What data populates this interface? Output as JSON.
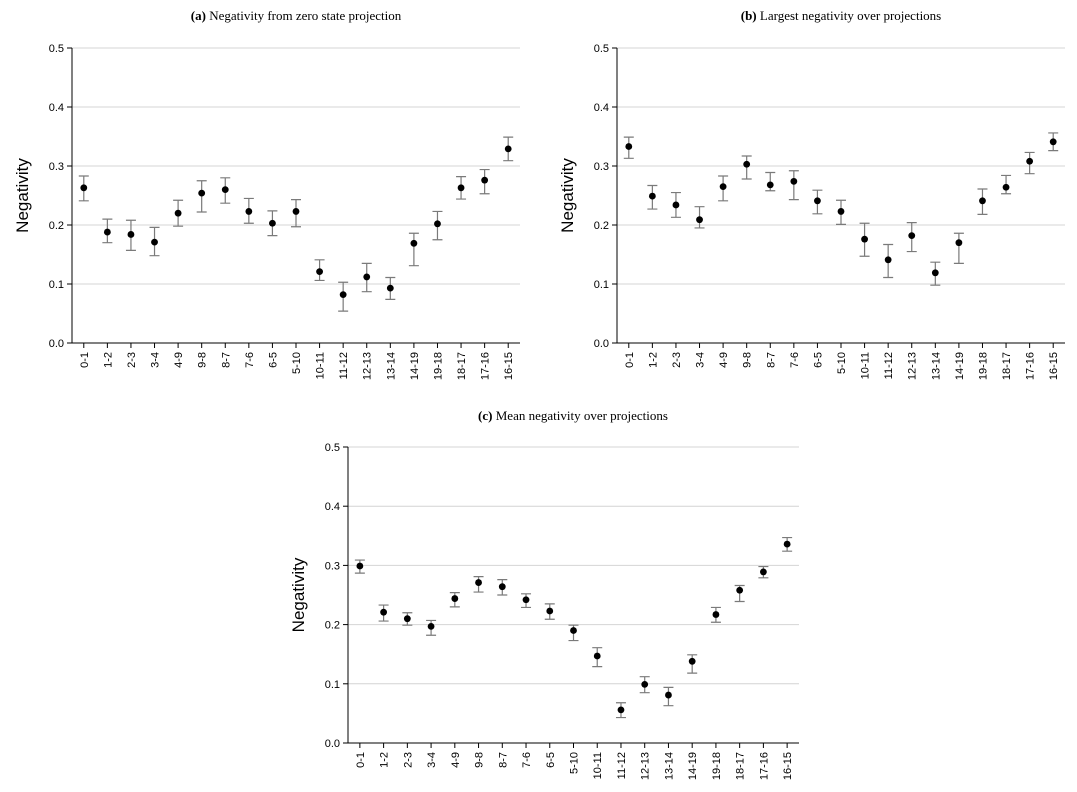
{
  "chart_data": [
    {
      "type": "scatter",
      "panel_label": "(a)",
      "title": "Negativity from zero state projection",
      "xlabel": "",
      "ylabel": "Negativity",
      "ylim": [
        0,
        0.5
      ],
      "yticks": [
        "0.0",
        "0.1",
        "0.2",
        "0.3",
        "0.4",
        "0.5"
      ],
      "grid": true,
      "categories": [
        "0-1",
        "1-2",
        "2-3",
        "3-4",
        "4-9",
        "9-8",
        "8-7",
        "7-6",
        "6-5",
        "5-10",
        "10-11",
        "11-12",
        "12-13",
        "13-14",
        "14-19",
        "19-18",
        "18-17",
        "17-16",
        "16-15"
      ],
      "values": [
        0.263,
        0.188,
        0.184,
        0.171,
        0.22,
        0.254,
        0.26,
        0.223,
        0.203,
        0.223,
        0.121,
        0.082,
        0.112,
        0.093,
        0.169,
        0.202,
        0.263,
        0.276,
        0.329
      ],
      "err_low": [
        0.241,
        0.17,
        0.157,
        0.148,
        0.198,
        0.222,
        0.237,
        0.203,
        0.182,
        0.197,
        0.106,
        0.054,
        0.087,
        0.074,
        0.131,
        0.175,
        0.244,
        0.253,
        0.309
      ],
      "err_high": [
        0.283,
        0.21,
        0.208,
        0.196,
        0.242,
        0.275,
        0.28,
        0.245,
        0.224,
        0.243,
        0.141,
        0.103,
        0.135,
        0.111,
        0.186,
        0.223,
        0.282,
        0.294,
        0.349
      ]
    },
    {
      "type": "scatter",
      "panel_label": "(b)",
      "title": "Largest negativity over projections",
      "xlabel": "",
      "ylabel": "Negativity",
      "ylim": [
        0,
        0.5
      ],
      "yticks": [
        "0.0",
        "0.1",
        "0.2",
        "0.3",
        "0.4",
        "0.5"
      ],
      "grid": true,
      "categories": [
        "0-1",
        "1-2",
        "2-3",
        "3-4",
        "4-9",
        "9-8",
        "8-7",
        "7-6",
        "6-5",
        "5-10",
        "10-11",
        "11-12",
        "12-13",
        "13-14",
        "14-19",
        "19-18",
        "18-17",
        "17-16",
        "16-15"
      ],
      "values": [
        0.333,
        0.249,
        0.234,
        0.209,
        0.265,
        0.303,
        0.268,
        0.274,
        0.241,
        0.223,
        0.176,
        0.141,
        0.182,
        0.119,
        0.17,
        0.241,
        0.264,
        0.308,
        0.341
      ],
      "err_low": [
        0.313,
        0.227,
        0.213,
        0.195,
        0.241,
        0.278,
        0.258,
        0.243,
        0.219,
        0.201,
        0.147,
        0.111,
        0.155,
        0.098,
        0.135,
        0.218,
        0.253,
        0.287,
        0.326
      ],
      "err_high": [
        0.349,
        0.267,
        0.255,
        0.231,
        0.283,
        0.317,
        0.289,
        0.292,
        0.259,
        0.242,
        0.203,
        0.167,
        0.204,
        0.137,
        0.186,
        0.261,
        0.284,
        0.323,
        0.356
      ]
    },
    {
      "type": "scatter",
      "panel_label": "(c)",
      "title": "Mean negativity over projections",
      "xlabel": "",
      "ylabel": "Negativity",
      "ylim": [
        0,
        0.5
      ],
      "yticks": [
        "0.0",
        "0.1",
        "0.2",
        "0.3",
        "0.4",
        "0.5"
      ],
      "grid": true,
      "categories": [
        "0-1",
        "1-2",
        "2-3",
        "3-4",
        "4-9",
        "9-8",
        "8-7",
        "7-6",
        "6-5",
        "5-10",
        "10-11",
        "11-12",
        "12-13",
        "13-14",
        "14-19",
        "19-18",
        "18-17",
        "17-16",
        "16-15"
      ],
      "values": [
        0.299,
        0.221,
        0.21,
        0.197,
        0.244,
        0.271,
        0.264,
        0.242,
        0.223,
        0.19,
        0.147,
        0.056,
        0.099,
        0.081,
        0.138,
        0.217,
        0.258,
        0.289,
        0.336
      ],
      "err_low": [
        0.287,
        0.206,
        0.199,
        0.182,
        0.23,
        0.255,
        0.25,
        0.229,
        0.209,
        0.173,
        0.129,
        0.043,
        0.085,
        0.063,
        0.118,
        0.204,
        0.239,
        0.279,
        0.324
      ],
      "err_high": [
        0.309,
        0.233,
        0.22,
        0.207,
        0.254,
        0.281,
        0.276,
        0.252,
        0.235,
        0.199,
        0.161,
        0.068,
        0.112,
        0.094,
        0.149,
        0.229,
        0.266,
        0.298,
        0.347
      ]
    }
  ]
}
